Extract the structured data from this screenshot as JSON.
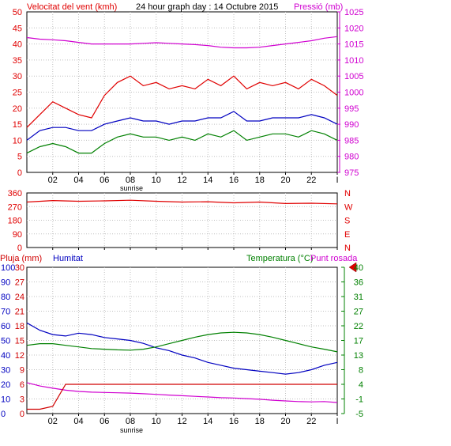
{
  "header": {
    "left_title": "Velocitat del vent (kmh)",
    "center_title": "24 hour graph day : 14 Octubre 2015",
    "right_title": "Pressió (mb)"
  },
  "colors": {
    "wind_max": "#e00000",
    "wind_avg": "#0000c0",
    "wind_min": "#008000",
    "pressure": "#d000d0",
    "direction": "#e00000",
    "humidity": "#0000c0",
    "temperature": "#008000",
    "dewpoint": "#d000d0",
    "rain": "#d00000",
    "left_axis_text": "#e00000",
    "humidity_axis_text": "#0000c0",
    "rain_axis_text": "#d00000",
    "temp_axis_text": "#008000",
    "pressure_axis_text": "#d000d0",
    "grid": "#c0c0c0"
  },
  "x_axis": {
    "tick_labels": [
      "02",
      "04",
      "06",
      "08",
      "10",
      "12",
      "14",
      "16",
      "18",
      "20",
      "22",
      "I"
    ],
    "sunrise_label": "sunrise"
  },
  "chart_data": [
    {
      "id": "wind",
      "type": "line",
      "ylim": [
        0,
        50
      ],
      "y_ticks": [
        "0",
        "5",
        "10",
        "15",
        "20",
        "25",
        "30",
        "35",
        "40",
        "45",
        "50"
      ],
      "y2lim": [
        975,
        1025
      ],
      "y2_ticks": [
        "975",
        "980",
        "985",
        "990",
        "995",
        "1000",
        "1005",
        "1010",
        "1015",
        "1020",
        "1025"
      ],
      "x_hours": [
        0,
        1,
        2,
        3,
        4,
        5,
        6,
        7,
        8,
        9,
        10,
        11,
        12,
        13,
        14,
        15,
        16,
        17,
        18,
        19,
        20,
        21,
        22,
        23,
        24
      ],
      "series": [
        {
          "key": "wind_max",
          "values": [
            14,
            18,
            22,
            20,
            18,
            17,
            24,
            28,
            30,
            27,
            28,
            26,
            27,
            26,
            29,
            27,
            30,
            26,
            28,
            27,
            28,
            26,
            29,
            27,
            24
          ]
        },
        {
          "key": "wind_avg",
          "values": [
            10,
            13,
            14,
            14,
            13,
            13,
            15,
            16,
            17,
            16,
            16,
            15,
            16,
            16,
            17,
            17,
            19,
            16,
            16,
            17,
            17,
            17,
            18,
            17,
            15
          ]
        },
        {
          "key": "wind_min",
          "values": [
            6,
            8,
            9,
            8,
            6,
            6,
            9,
            11,
            12,
            11,
            11,
            10,
            11,
            10,
            12,
            11,
            13,
            10,
            11,
            12,
            12,
            11,
            13,
            12,
            10
          ]
        },
        {
          "key": "pressure",
          "values": [
            1017,
            1016.5,
            1016.3,
            1016,
            1015.5,
            1015,
            1015,
            1015,
            1015,
            1015.2,
            1015.4,
            1015.2,
            1015,
            1014.8,
            1014.5,
            1014,
            1013.8,
            1013.8,
            1014,
            1014.5,
            1015,
            1015.5,
            1016,
            1016.8,
            1017.3
          ]
        }
      ]
    },
    {
      "id": "direction",
      "type": "line",
      "ylim": [
        0,
        360
      ],
      "y_ticks": [
        "0",
        "90",
        "180",
        "270",
        "360"
      ],
      "compass_labels": [
        "N",
        "W",
        "S",
        "E",
        "N"
      ],
      "x_hours": [
        0,
        2,
        4,
        6,
        8,
        10,
        12,
        14,
        16,
        18,
        20,
        22,
        24
      ],
      "series": [
        {
          "key": "direction",
          "values": [
            300,
            310,
            305,
            308,
            312,
            305,
            300,
            302,
            295,
            300,
            290,
            292,
            288
          ]
        }
      ]
    },
    {
      "id": "humidity_temp",
      "type": "line",
      "humidity_title": "Humitat",
      "rain_title": "Pluja (mm)",
      "temp_title": "Temperatura (°C)",
      "dewpoint_title": "Punt rosada",
      "humidity_lim": [
        0,
        100
      ],
      "humidity_ticks": [
        "0",
        "10",
        "20",
        "30",
        "40",
        "50",
        "60",
        "70",
        "80",
        "90",
        "100"
      ],
      "rain_lim": [
        0,
        30
      ],
      "rain_ticks": [
        "0",
        "3",
        "6",
        "9",
        "12",
        "15",
        "18",
        "21",
        "24",
        "27",
        "30"
      ],
      "temp_lim": [
        -5,
        40
      ],
      "temp_ticks": [
        "-5",
        "-1",
        "4",
        "8",
        "13",
        "17",
        "22",
        "27",
        "31",
        "36",
        "40"
      ],
      "current_temp_marker": 40,
      "x_hours": [
        0,
        1,
        2,
        3,
        4,
        5,
        6,
        7,
        8,
        9,
        10,
        11,
        12,
        13,
        14,
        15,
        16,
        17,
        18,
        19,
        20,
        21,
        22,
        23,
        24
      ],
      "series": [
        {
          "key": "humidity",
          "values": [
            62,
            57,
            54,
            53,
            55,
            54,
            52,
            51,
            50,
            48,
            45,
            43,
            40,
            38,
            35,
            33,
            31,
            30,
            29,
            28,
            27,
            28,
            30,
            33,
            35
          ]
        },
        {
          "key": "temperature",
          "values": [
            16,
            16.5,
            16.5,
            16,
            15.5,
            15,
            14.8,
            14.6,
            14.5,
            14.8,
            15.5,
            16.5,
            17.5,
            18.5,
            19.3,
            19.8,
            20,
            19.8,
            19.3,
            18.5,
            17.5,
            16.5,
            15.5,
            14.8,
            14
          ]
        },
        {
          "key": "dewpoint",
          "values": [
            4.5,
            3.5,
            2.8,
            2.2,
            1.8,
            1.6,
            1.5,
            1.4,
            1.3,
            1.1,
            0.9,
            0.7,
            0.5,
            0.3,
            0.1,
            -0.1,
            -0.2,
            -0.4,
            -0.6,
            -0.9,
            -1.1,
            -1.3,
            -1.4,
            -1.3,
            -1.6
          ]
        },
        {
          "key": "rain",
          "values": [
            0.9,
            0.9,
            1.5,
            6,
            6,
            6,
            6,
            6,
            6,
            6,
            6,
            6,
            6,
            6,
            6,
            6,
            6,
            6,
            6,
            6,
            6,
            6,
            6,
            6,
            6
          ]
        }
      ]
    }
  ]
}
